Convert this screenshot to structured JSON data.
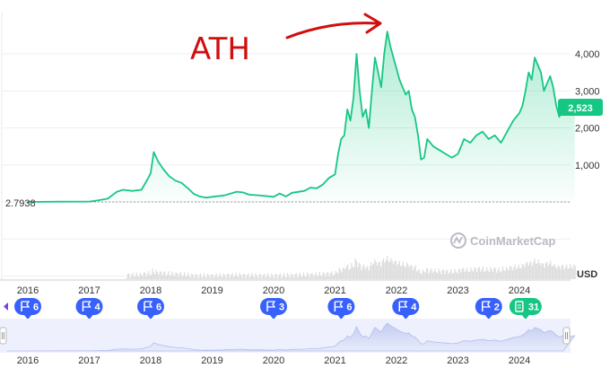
{
  "chart_data": {
    "type": "line",
    "title": "",
    "xlabel": "",
    "ylabel": "",
    "unit_label": "USD",
    "x_ticks": [
      "2016",
      "2017",
      "2018",
      "2019",
      "2020",
      "2021",
      "2022",
      "2023",
      "2024"
    ],
    "y_ticks": [
      1000,
      2000,
      3000,
      4000
    ],
    "y_tick_labels": [
      "1,000",
      "2,000",
      "3,000",
      "4,000"
    ],
    "ylim": [
      -2100,
      4900
    ],
    "xlim": [
      2015.6,
      2024.9
    ],
    "start_label": "2.7938",
    "current_value_label": "2,523",
    "annotation": "ATH",
    "watermark": "CoinMarketCap",
    "line_color": "#16c784",
    "ath_color": "#d10e0e",
    "flag_color": "#3861fb",
    "series": [
      {
        "x": [
          2015.6,
          2016.0,
          2016.5,
          2017.0,
          2017.15,
          2017.3,
          2017.45,
          2017.55,
          2017.7,
          2017.85,
          2017.95,
          2018.0,
          2018.05,
          2018.12,
          2018.2,
          2018.3,
          2018.4,
          2018.5,
          2018.6,
          2018.7,
          2018.8,
          2018.9,
          2019.0,
          2019.2,
          2019.4,
          2019.5,
          2019.6,
          2019.8,
          2020.0,
          2020.1,
          2020.2,
          2020.3,
          2020.5,
          2020.6,
          2020.7,
          2020.8,
          2020.9,
          2021.0,
          2021.05,
          2021.1,
          2021.15,
          2021.2,
          2021.25,
          2021.3,
          2021.35,
          2021.4,
          2021.45,
          2021.5,
          2021.55,
          2021.6,
          2021.65,
          2021.7,
          2021.75,
          2021.8,
          2021.85,
          2021.9,
          2021.95,
          2022.0,
          2022.05,
          2022.1,
          2022.15,
          2022.2,
          2022.25,
          2022.3,
          2022.35,
          2022.4,
          2022.45,
          2022.5,
          2022.6,
          2022.7,
          2022.8,
          2022.9,
          2023.0,
          2023.1,
          2023.2,
          2023.3,
          2023.4,
          2023.5,
          2023.6,
          2023.7,
          2023.8,
          2023.9,
          2024.0,
          2024.05,
          2024.1,
          2024.15,
          2024.2,
          2024.25,
          2024.3,
          2024.35,
          2024.4,
          2024.45,
          2024.5,
          2024.55,
          2024.6,
          2024.65,
          2024.7,
          2024.8,
          2024.9
        ],
        "values": [
          3,
          3,
          10,
          12,
          50,
          90,
          280,
          330,
          300,
          330,
          620,
          780,
          1350,
          1100,
          900,
          700,
          580,
          520,
          380,
          220,
          150,
          120,
          140,
          180,
          280,
          260,
          200,
          175,
          140,
          230,
          150,
          250,
          300,
          390,
          370,
          470,
          650,
          750,
          1300,
          1700,
          1800,
          2500,
          2200,
          2800,
          4000,
          3000,
          2300,
          2500,
          2000,
          3000,
          3900,
          3500,
          3100,
          4000,
          4600,
          4200,
          3900,
          3600,
          3300,
          3100,
          2900,
          3000,
          2500,
          2300,
          1800,
          1150,
          1200,
          1700,
          1500,
          1400,
          1300,
          1200,
          1300,
          1700,
          1600,
          1800,
          1900,
          1700,
          1800,
          1600,
          1900,
          2200,
          2400,
          2600,
          3000,
          3500,
          3300,
          3900,
          3700,
          3500,
          3000,
          3200,
          3400,
          3100,
          2600,
          2300,
          2500,
          2400,
          2523
        ]
      }
    ]
  },
  "flags": [
    {
      "year": 2016.0,
      "count": "6",
      "kind": "event"
    },
    {
      "year": 2017.0,
      "count": "4",
      "kind": "event"
    },
    {
      "year": 2018.0,
      "count": "6",
      "kind": "event"
    },
    {
      "year": 2020.0,
      "count": "3",
      "kind": "event"
    },
    {
      "year": 2021.1,
      "count": "6",
      "kind": "event"
    },
    {
      "year": 2022.15,
      "count": "4",
      "kind": "event"
    },
    {
      "year": 2023.5,
      "count": "2",
      "kind": "event"
    },
    {
      "year": 2024.1,
      "count": "31",
      "kind": "doc"
    }
  ],
  "navigator_ticks": [
    "2016",
    "2017",
    "2018",
    "2019",
    "2020",
    "2021",
    "2022",
    "2023",
    "2024"
  ]
}
